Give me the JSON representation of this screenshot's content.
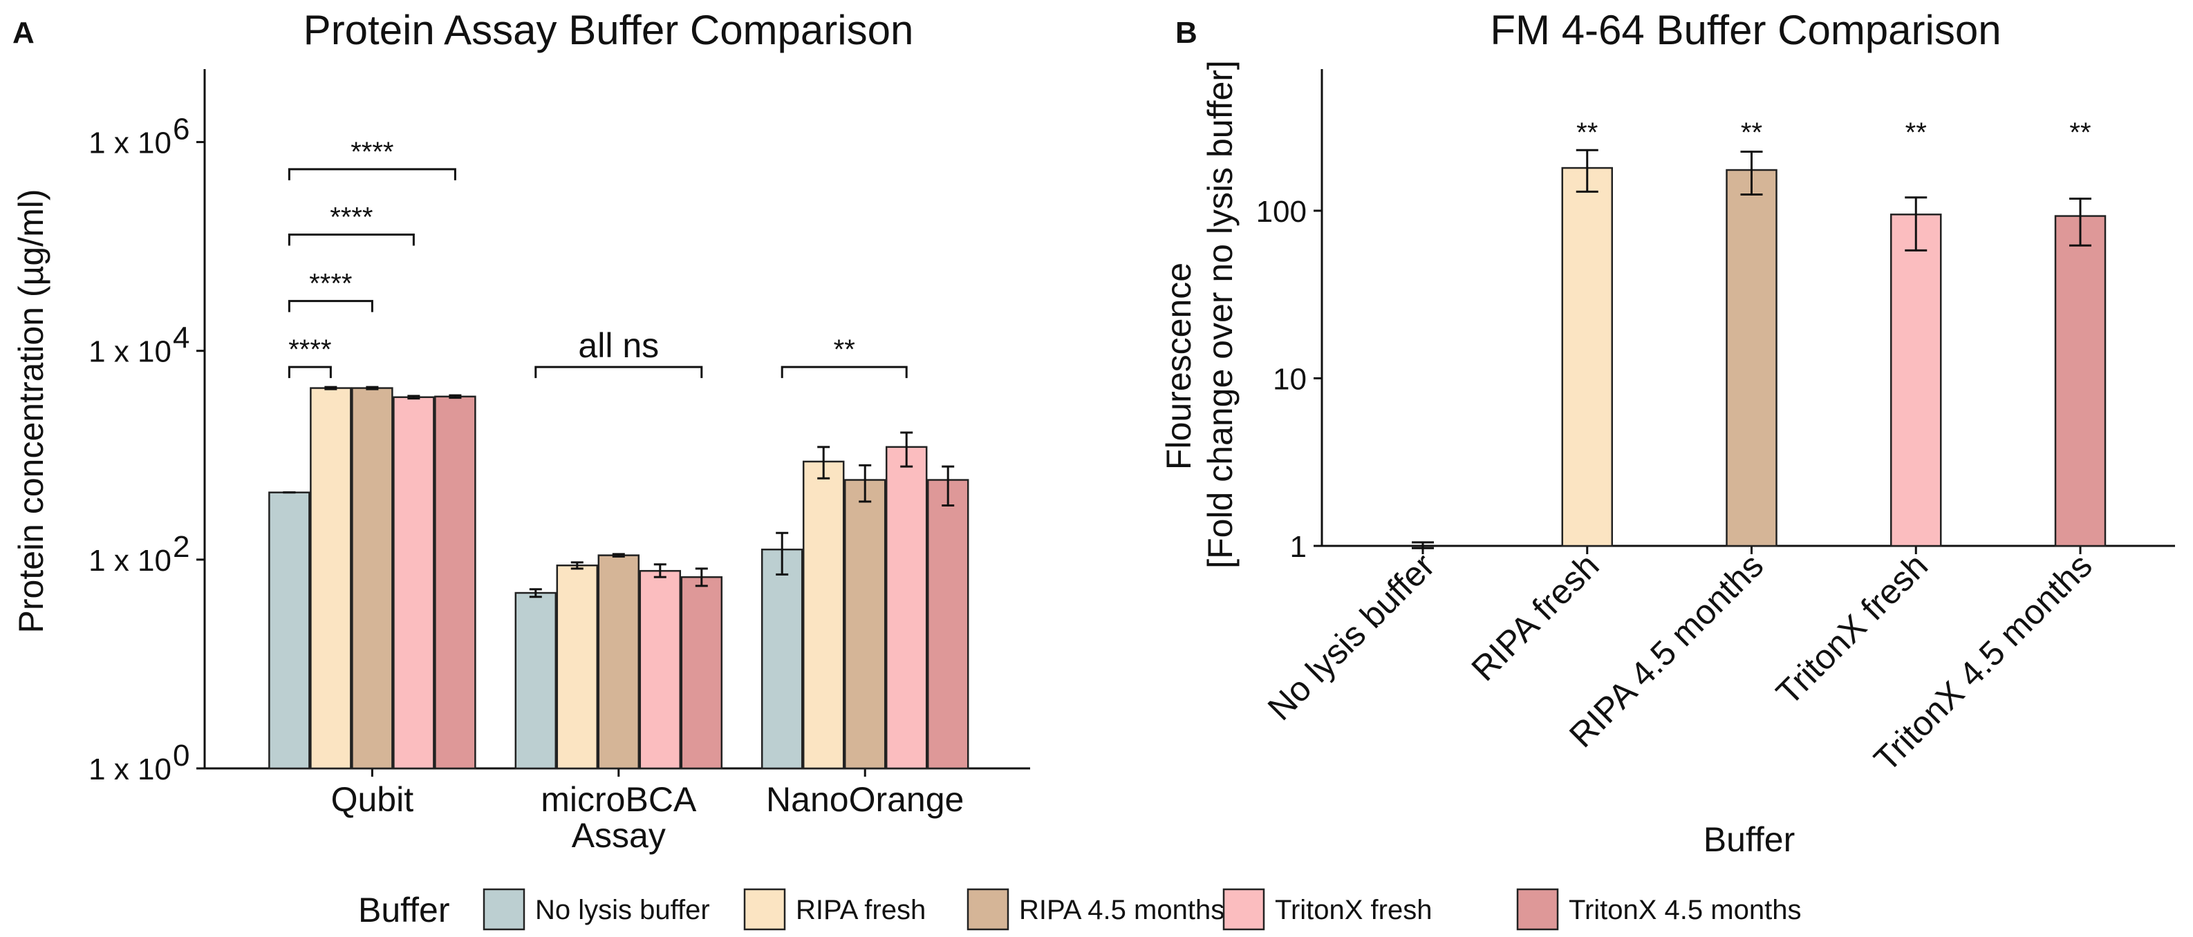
{
  "colors": {
    "No lysis buffer": "#bccfd1",
    "RIPA fresh": "#fbe4c2",
    "RIPA 4.5 months": "#d5b597",
    "TritonX fresh": "#fbbdbf",
    "TritonX 4.5 months": "#de9898"
  },
  "legend": {
    "title": "Buffer",
    "items": [
      "No lysis buffer",
      "RIPA fresh",
      "RIPA 4.5 months",
      "TritonX fresh",
      "TritonX 4.5 months"
    ]
  },
  "chart_data": [
    {
      "panel": "A",
      "type": "bar",
      "title": "Protein Assay Buffer Comparison",
      "xlabel": "",
      "ylabel": "Protein concentration (µg/ml)",
      "yscale": "log10",
      "ylim": [
        1,
        5000000
      ],
      "yticks": [
        1,
        100,
        10000,
        1000000
      ],
      "ytick_labels": [
        "1 x 10",
        "1 x 10",
        "1 x 10",
        "1 x 10"
      ],
      "ytick_exponents": [
        "0",
        "2",
        "4",
        "6"
      ],
      "categories": [
        "Qubit",
        "microBCA\nAssay",
        "NanoOrange"
      ],
      "category_lines": [
        [
          "Qubit"
        ],
        [
          "microBCA",
          "Assay"
        ],
        [
          "NanoOrange"
        ]
      ],
      "series": [
        {
          "name": "No lysis buffer",
          "values": [
            440,
            48,
            125
          ],
          "errors": [
            [
              440,
              440
            ],
            [
              44,
              52
            ],
            [
              72,
              180
            ]
          ]
        },
        {
          "name": "RIPA fresh",
          "values": [
            4400,
            88,
            870
          ],
          "errors": [
            [
              4300,
              4500
            ],
            [
              82,
              94
            ],
            [
              600,
              1200
            ]
          ]
        },
        {
          "name": "RIPA 4.5 months",
          "values": [
            4400,
            110,
            580
          ],
          "errors": [
            [
              4300,
              4500
            ],
            [
              107,
              113
            ],
            [
              360,
              800
            ]
          ]
        },
        {
          "name": "TritonX fresh",
          "values": [
            3600,
            78,
            1200
          ],
          "errors": [
            [
              3500,
              3700
            ],
            [
              68,
              90
            ],
            [
              780,
              1650
            ]
          ]
        },
        {
          "name": "TritonX 4.5 months",
          "values": [
            3650,
            68,
            580
          ],
          "errors": [
            [
              3550,
              3750
            ],
            [
              56,
              82
            ],
            [
              330,
              780
            ]
          ]
        }
      ],
      "significance": [
        {
          "category": "Qubit",
          "from": "No lysis buffer",
          "to": "RIPA fresh",
          "label": "****",
          "y": 7000
        },
        {
          "category": "Qubit",
          "from": "No lysis buffer",
          "to": "RIPA 4.5 months",
          "label": "****",
          "y": 30000
        },
        {
          "category": "Qubit",
          "from": "No lysis buffer",
          "to": "TritonX fresh",
          "label": "****",
          "y": 130000
        },
        {
          "category": "Qubit",
          "from": "No lysis buffer",
          "to": "TritonX 4.5 months",
          "label": "****",
          "y": 550000
        },
        {
          "category": "microBCA\nAssay",
          "from": "No lysis buffer",
          "to": "TritonX 4.5 months",
          "label": "all ns",
          "y": 7000
        },
        {
          "category": "NanoOrange",
          "from": "No lysis buffer",
          "to": "TritonX fresh",
          "label": "**",
          "y": 7000
        }
      ]
    },
    {
      "panel": "B",
      "type": "bar",
      "title": "FM 4-64 Buffer Comparison",
      "xlabel": "Buffer",
      "ylabel": "Flourescence",
      "ylabel_line2": "[Fold change over no lysis buffer]",
      "yscale": "log10",
      "ylim": [
        1,
        700
      ],
      "yticks": [
        1,
        10,
        100
      ],
      "ytick_labels": [
        "1",
        "10",
        "100"
      ],
      "categories": [
        "No lysis buffer",
        "RIPA fresh",
        "RIPA 4.5 months",
        "TritonX fresh",
        "TritonX 4.5 months"
      ],
      "values": [
        1.0,
        180,
        175,
        95,
        93
      ],
      "errors": [
        [
          0.97,
          1.05
        ],
        [
          130,
          230
        ],
        [
          125,
          225
        ],
        [
          58,
          120
        ],
        [
          62,
          118
        ]
      ],
      "significance_labels": [
        "",
        "**",
        "**",
        "**",
        "**"
      ]
    }
  ]
}
